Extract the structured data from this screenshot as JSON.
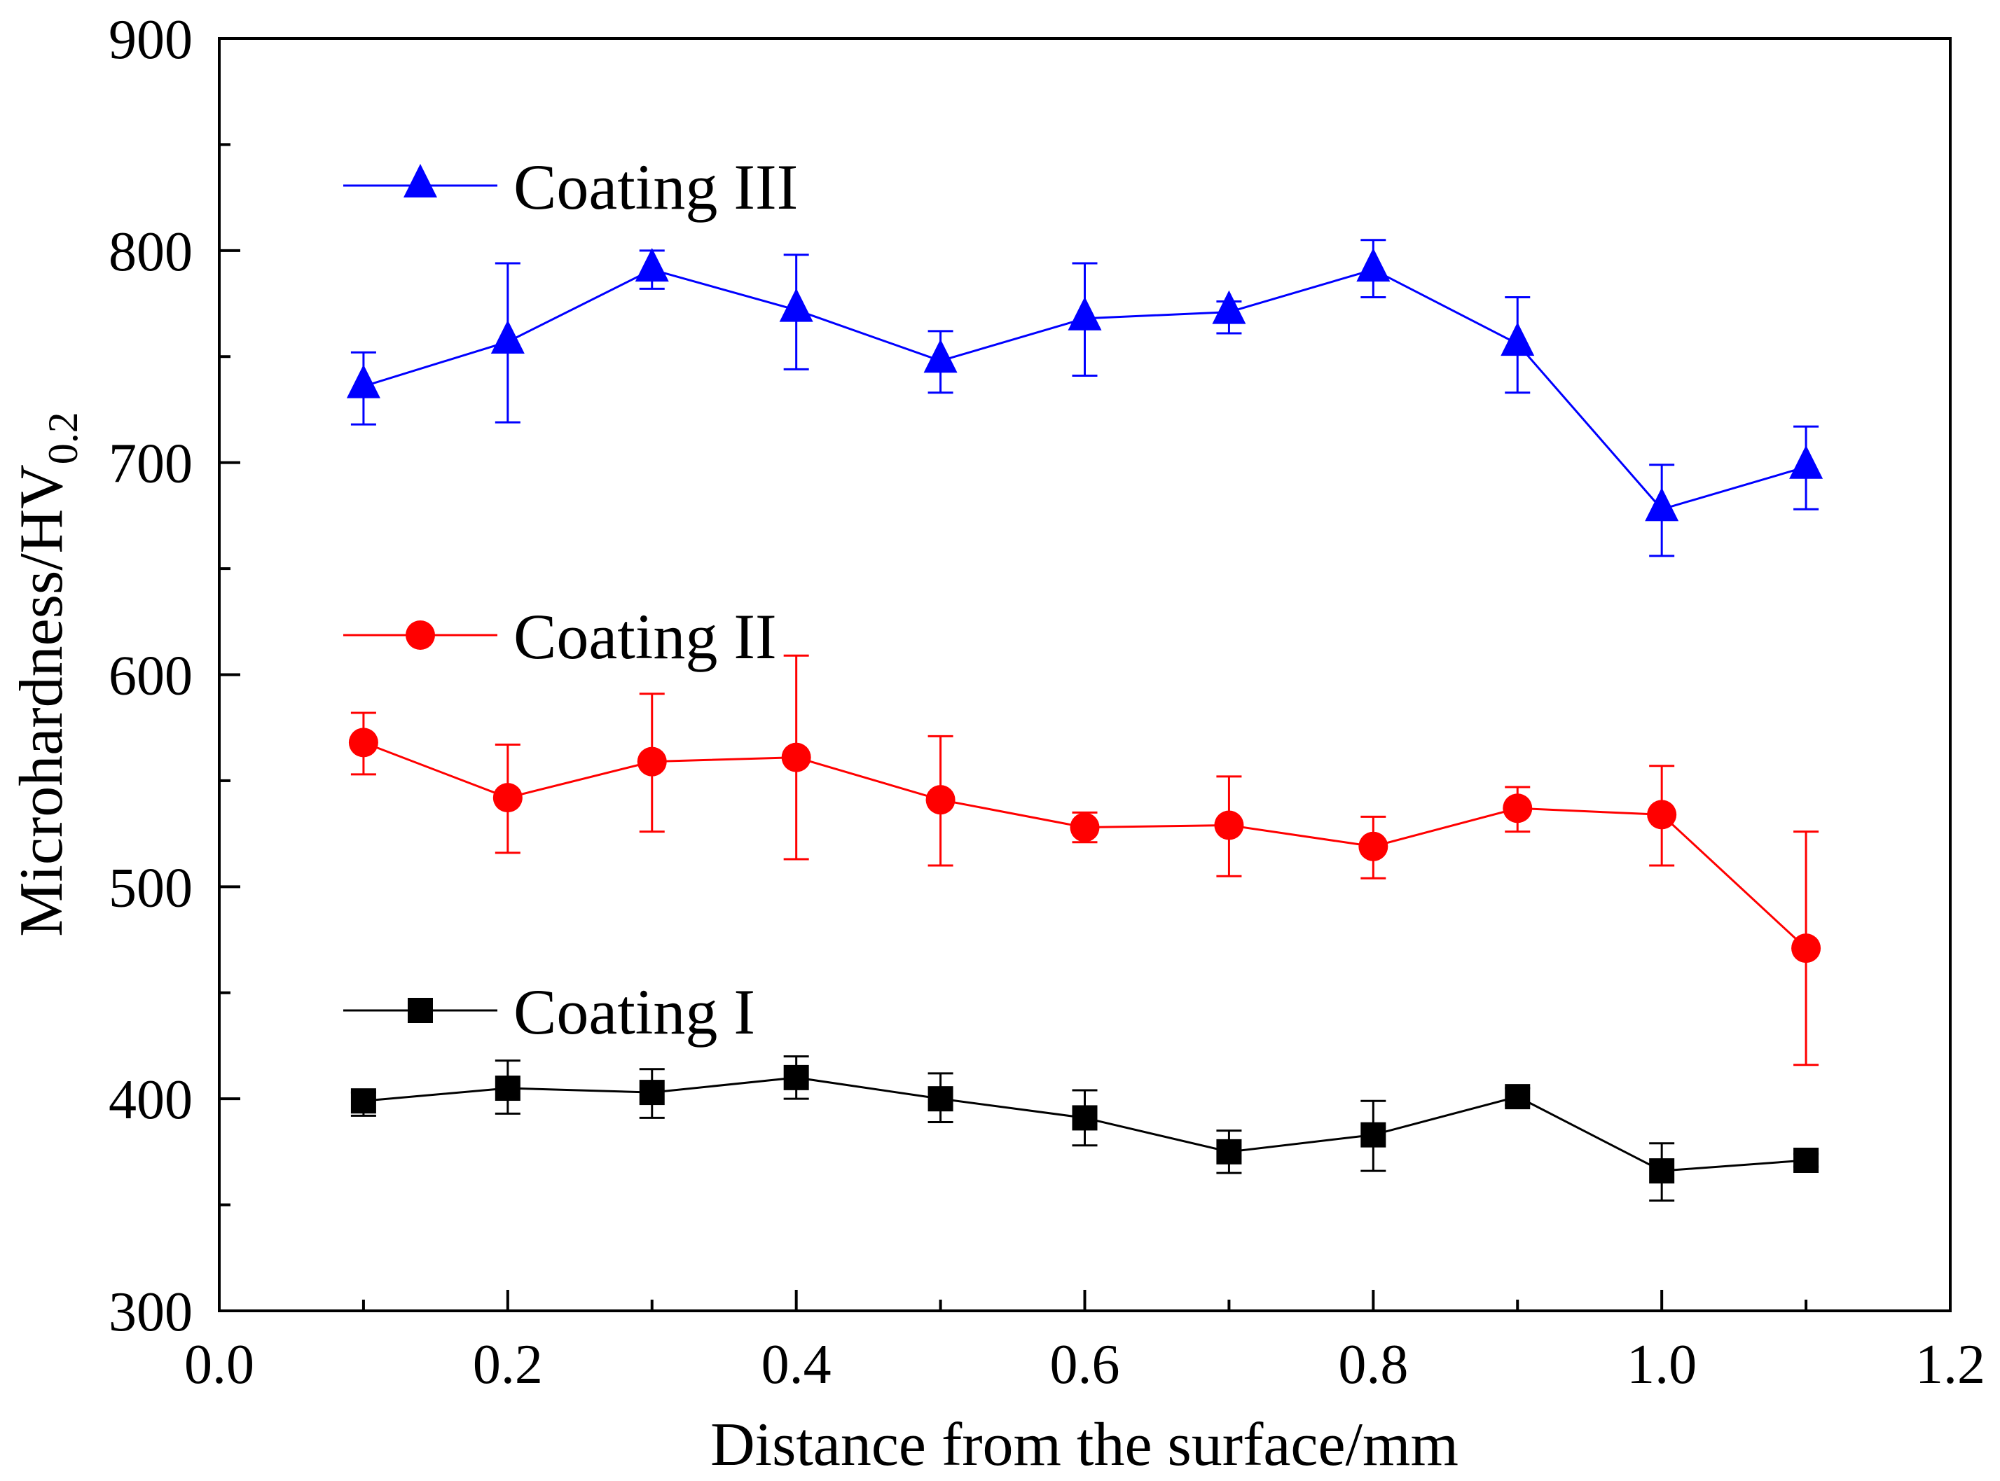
{
  "chart_data": {
    "type": "line",
    "title": "",
    "xlabel": "Distance from the surface/mm",
    "ylabel": {
      "main": "Microhardness/HV",
      "subscript": "0.2"
    },
    "xlim": [
      0.0,
      1.2
    ],
    "ylim": [
      300,
      900
    ],
    "x_ticks": [
      "0.0",
      "0.2",
      "0.4",
      "0.6",
      "0.8",
      "1.0",
      "1.2"
    ],
    "y_ticks": [
      "300",
      "400",
      "500",
      "600",
      "700",
      "800",
      "900"
    ],
    "grid": false,
    "x": [
      0.1,
      0.2,
      0.3,
      0.4,
      0.5,
      0.6,
      0.7,
      0.8,
      0.9,
      1.0,
      1.1
    ],
    "series": [
      {
        "name": "Coating III",
        "color": "#0000ff",
        "marker": "triangle",
        "values": [
          736,
          757,
          791,
          772,
          748,
          768,
          771,
          791,
          756,
          678,
          698
        ],
        "err_low": [
          718,
          719,
          782,
          744,
          733,
          741,
          761,
          778,
          733,
          656,
          678
        ],
        "err_high": [
          752,
          794,
          800,
          798,
          762,
          794,
          776,
          805,
          778,
          699,
          717
        ]
      },
      {
        "name": "Coating II",
        "color": "#ff0000",
        "marker": "circle",
        "values": [
          568,
          542,
          559,
          561,
          541,
          528,
          529,
          519,
          537,
          534,
          471
        ],
        "err_low": [
          553,
          516,
          526,
          513,
          510,
          521,
          505,
          504,
          526,
          510,
          416
        ],
        "err_high": [
          582,
          567,
          591,
          609,
          571,
          535,
          552,
          533,
          547,
          557,
          526
        ]
      },
      {
        "name": "Coating I",
        "color": "#000000",
        "marker": "square",
        "values": [
          399,
          405,
          403,
          410,
          400,
          391,
          375,
          383,
          401,
          366,
          371
        ],
        "err_low": [
          392,
          393,
          391,
          400,
          389,
          378,
          365,
          366,
          397,
          352,
          368
        ],
        "err_high": [
          403,
          418,
          414,
          420,
          412,
          404,
          385,
          399,
          405,
          379,
          374
        ]
      }
    ],
    "legend": {
      "placement": "inside-left",
      "entries": [
        {
          "label": "Coating III",
          "series_index": 0
        },
        {
          "label": "Coating II",
          "series_index": 1
        },
        {
          "label": "Coating I",
          "series_index": 2
        }
      ]
    }
  }
}
